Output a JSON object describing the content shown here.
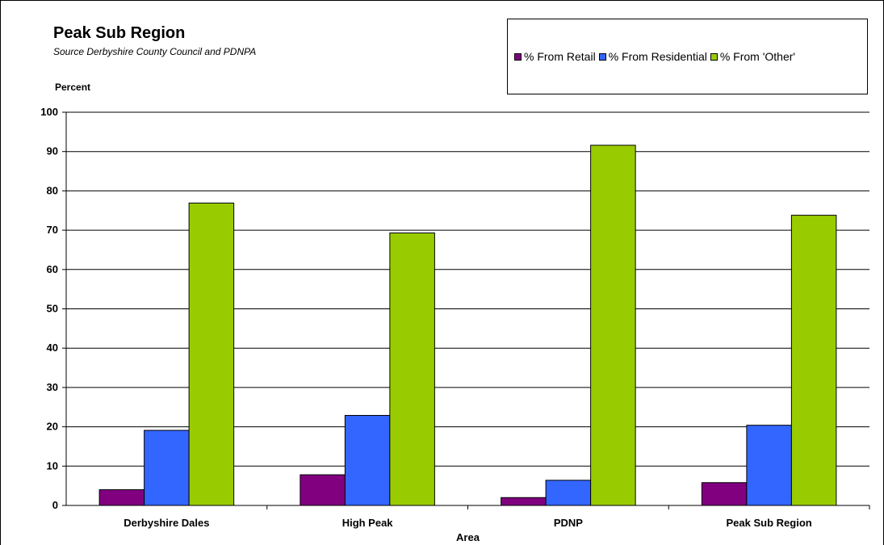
{
  "chart_data": {
    "type": "bar",
    "title": "Peak Sub Region",
    "subtitle": "Source Derbyshire County Council and PDNPA",
    "xlabel": "Area",
    "ylabel": "Percent",
    "categories": [
      "Derbyshire Dales",
      "High Peak",
      "PDNP",
      "Peak Sub Region"
    ],
    "series": [
      {
        "name": "% From Retail",
        "values": [
          4.0,
          7.8,
          2.0,
          5.8
        ],
        "color": "#800080"
      },
      {
        "name": "% From Residential",
        "values": [
          19.1,
          22.9,
          6.4,
          20.4
        ],
        "color": "#3366ff"
      },
      {
        "name": "% From 'Other'",
        "values": [
          76.9,
          69.3,
          91.6,
          73.8
        ],
        "color": "#99cc00"
      }
    ],
    "ylim": [
      0,
      100
    ],
    "yticks": [
      0,
      10,
      20,
      30,
      40,
      50,
      60,
      70,
      80,
      90,
      100
    ],
    "grid": true,
    "legend_position": "top-right"
  }
}
